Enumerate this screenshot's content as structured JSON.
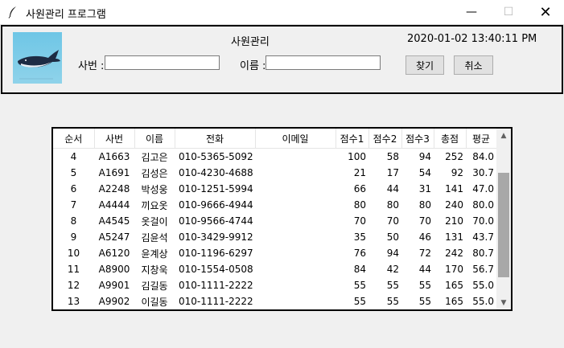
{
  "window": {
    "title": "사원관리 프로그램",
    "minimize": "—",
    "maximize": "☐",
    "close": "✕"
  },
  "header": {
    "title": "사원관리",
    "datetime": "2020-01-02 13:40:11 PM",
    "id_label": "사번 :",
    "name_label": "이름 :",
    "id_value": "",
    "name_value": "",
    "find_button": "찾기",
    "cancel_button": "취소"
  },
  "table": {
    "columns": [
      "순서",
      "사번",
      "이름",
      "전화",
      "이메일",
      "점수1",
      "점수2",
      "점수3",
      "총점",
      "평균"
    ],
    "rows": [
      [
        "4",
        "A1663",
        "김고은",
        "010-5365-5092",
        "",
        "100",
        "58",
        "94",
        "252",
        "84.0"
      ],
      [
        "5",
        "A1691",
        "김성은",
        "010-4230-4688",
        "",
        "21",
        "17",
        "54",
        "92",
        "30.7"
      ],
      [
        "6",
        "A2248",
        "박성웅",
        "010-1251-5994",
        "",
        "66",
        "44",
        "31",
        "141",
        "47.0"
      ],
      [
        "7",
        "A4444",
        "끼요옷",
        "010-9666-4944",
        "",
        "80",
        "80",
        "80",
        "240",
        "80.0"
      ],
      [
        "8",
        "A4545",
        "옷걸이",
        "010-9566-4744",
        "",
        "70",
        "70",
        "70",
        "210",
        "70.0"
      ],
      [
        "9",
        "A5247",
        "김윤석",
        "010-3429-9912",
        "",
        "35",
        "50",
        "46",
        "131",
        "43.7"
      ],
      [
        "10",
        "A6120",
        "윤계상",
        "010-1196-6297",
        "",
        "76",
        "94",
        "72",
        "242",
        "80.7"
      ],
      [
        "11",
        "A8900",
        "지창욱",
        "010-1554-0508",
        "",
        "84",
        "42",
        "44",
        "170",
        "56.7"
      ],
      [
        "12",
        "A9901",
        "김길동",
        "010-1111-2222",
        "",
        "55",
        "55",
        "55",
        "165",
        "55.0"
      ],
      [
        "13",
        "A9902",
        "이길동",
        "010-1111-2222",
        "",
        "55",
        "55",
        "55",
        "165",
        "55.0"
      ]
    ]
  },
  "colors": {
    "frame_border": "#000000",
    "window_bg": "#f0f0f0",
    "logo_bg": "#6ec6e6",
    "scroll_thumb": "#a8a8a8"
  },
  "icons": {
    "app": "feather-icon",
    "logo": "whale-icon",
    "scroll_up": "chevron-up-icon",
    "scroll_down": "chevron-down-icon"
  }
}
